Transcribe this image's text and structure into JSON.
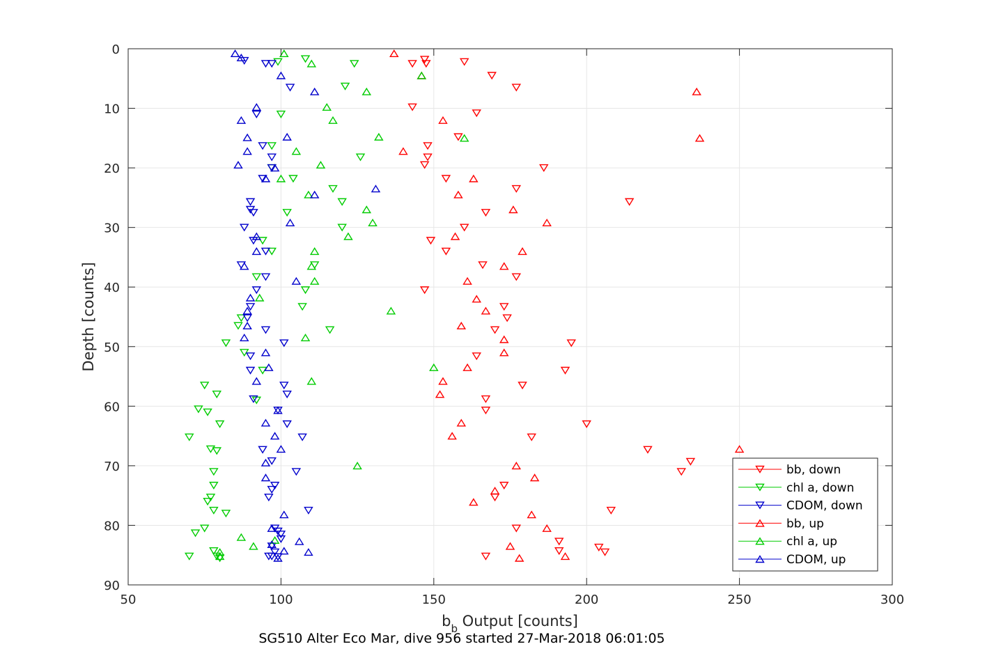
{
  "chart_data": {
    "type": "scatter",
    "xlabel_main": "b",
    "xlabel_sub": "b",
    "xlabel_rest": " Output [counts]",
    "ylabel": "Depth [counts]",
    "caption": "SG510 Alter Eco Mar, dive 956 started 27-Mar-2018 06:01:05",
    "xlim": [
      50,
      300
    ],
    "ylim": [
      0,
      90
    ],
    "y_reversed": true,
    "grid": true,
    "legend_position": "bottom-right",
    "x_ticks": [
      50,
      100,
      150,
      200,
      250,
      300
    ],
    "y_ticks": [
      0,
      10,
      20,
      30,
      40,
      50,
      60,
      70,
      80,
      90
    ],
    "series": [
      {
        "name": "bb, down",
        "color": "#ff0000",
        "marker": "triangle-down",
        "points": [
          [
            147,
            1.8
          ],
          [
            143,
            2.5
          ],
          [
            147.5,
            2.5
          ],
          [
            160,
            2.2
          ],
          [
            169,
            4.5
          ],
          [
            177,
            6.5
          ],
          [
            143,
            9.8
          ],
          [
            164,
            10.8
          ],
          [
            158,
            14.8
          ],
          [
            148,
            16.3
          ],
          [
            148,
            18.2
          ],
          [
            147,
            19.5
          ],
          [
            186,
            20
          ],
          [
            154,
            21.8
          ],
          [
            177,
            23.5
          ],
          [
            214,
            25.7
          ],
          [
            167,
            27.5
          ],
          [
            160,
            30
          ],
          [
            149,
            32.2
          ],
          [
            154,
            34
          ],
          [
            166,
            36.3
          ],
          [
            177,
            38.3
          ],
          [
            147,
            40.5
          ],
          [
            173,
            43.3
          ],
          [
            174,
            45.2
          ],
          [
            170,
            47.2
          ],
          [
            195,
            49.4
          ],
          [
            164,
            51.6
          ],
          [
            193,
            54
          ],
          [
            179,
            56.5
          ],
          [
            167,
            58.8
          ],
          [
            167,
            60.7
          ],
          [
            200,
            63
          ],
          [
            182,
            65.2
          ],
          [
            220,
            67.3
          ],
          [
            234,
            69.3
          ],
          [
            231,
            71
          ],
          [
            170,
            75.3
          ],
          [
            173,
            73.3
          ],
          [
            208,
            77.5
          ],
          [
            177,
            80.5
          ],
          [
            191,
            82.7
          ],
          [
            191,
            84.3
          ],
          [
            204,
            83.7
          ],
          [
            206,
            84.5
          ],
          [
            167,
            85.2
          ]
        ]
      },
      {
        "name": "chl a, down",
        "color": "#00cc00",
        "marker": "triangle-down",
        "points": [
          [
            108,
            1.7
          ],
          [
            99,
            2.2
          ],
          [
            124,
            2.5
          ],
          [
            121,
            6.3
          ],
          [
            100,
            11
          ],
          [
            97,
            16.3
          ],
          [
            126,
            18.2
          ],
          [
            97,
            20
          ],
          [
            104,
            21.8
          ],
          [
            117,
            23.5
          ],
          [
            120,
            25.7
          ],
          [
            102,
            27.5
          ],
          [
            120,
            30
          ],
          [
            94,
            32.2
          ],
          [
            97,
            34
          ],
          [
            111,
            36.3
          ],
          [
            92,
            38.3
          ],
          [
            108,
            40.5
          ],
          [
            107,
            43.3
          ],
          [
            87,
            45.2
          ],
          [
            86,
            46.5
          ],
          [
            116,
            47.2
          ],
          [
            82,
            49.4
          ],
          [
            88,
            51
          ],
          [
            94,
            54
          ],
          [
            75,
            56.5
          ],
          [
            79,
            58
          ],
          [
            92,
            59
          ],
          [
            73,
            60.5
          ],
          [
            76,
            61
          ],
          [
            80,
            63
          ],
          [
            70,
            65.2
          ],
          [
            77,
            67.2
          ],
          [
            79,
            67.5
          ],
          [
            78,
            71
          ],
          [
            78,
            73.3
          ],
          [
            77,
            75.3
          ],
          [
            76,
            76
          ],
          [
            78,
            77.5
          ],
          [
            82,
            78
          ],
          [
            75,
            80.5
          ],
          [
            72,
            81.3
          ],
          [
            78,
            84.3
          ],
          [
            79,
            85.2
          ],
          [
            80,
            85.5
          ],
          [
            70,
            85.2
          ]
        ]
      },
      {
        "name": "CDOM, down",
        "color": "#0000cc",
        "marker": "triangle-down",
        "points": [
          [
            88,
            2
          ],
          [
            95,
            2.5
          ],
          [
            97,
            2.5
          ],
          [
            103,
            6.5
          ],
          [
            92,
            11
          ],
          [
            94,
            16.3
          ],
          [
            97,
            18.2
          ],
          [
            97,
            20
          ],
          [
            94,
            21.8
          ],
          [
            90,
            25.7
          ],
          [
            90,
            27
          ],
          [
            91,
            27.5
          ],
          [
            88,
            30
          ],
          [
            91,
            32.2
          ],
          [
            95,
            34
          ],
          [
            87,
            36.3
          ],
          [
            95,
            38.3
          ],
          [
            92,
            40.5
          ],
          [
            90,
            43.3
          ],
          [
            89,
            45.2
          ],
          [
            95,
            47.2
          ],
          [
            101,
            49.4
          ],
          [
            90,
            51.6
          ],
          [
            90,
            54
          ],
          [
            101,
            56.5
          ],
          [
            102,
            58
          ],
          [
            91,
            58.8
          ],
          [
            99,
            60.7
          ],
          [
            102,
            63
          ],
          [
            107,
            65.2
          ],
          [
            94,
            67.3
          ],
          [
            97,
            69.2
          ],
          [
            105,
            71
          ],
          [
            98,
            73.3
          ],
          [
            97,
            74
          ],
          [
            96,
            75.3
          ],
          [
            109,
            77.5
          ],
          [
            98,
            80.5
          ],
          [
            99,
            81
          ],
          [
            100,
            81.5
          ],
          [
            100,
            82.3
          ],
          [
            97,
            83.5
          ],
          [
            98,
            84.5
          ],
          [
            96,
            85.2
          ],
          [
            97,
            85.2
          ],
          [
            99,
            85.3
          ]
        ]
      },
      {
        "name": "bb, up",
        "color": "#ff0000",
        "marker": "triangle-up",
        "points": [
          [
            137,
            0.8
          ],
          [
            146,
            4.5
          ],
          [
            236,
            7.2
          ],
          [
            153,
            12
          ],
          [
            237,
            15
          ],
          [
            140,
            17.2
          ],
          [
            163,
            21.8
          ],
          [
            158,
            24.5
          ],
          [
            176,
            27
          ],
          [
            187,
            29.2
          ],
          [
            157,
            31.5
          ],
          [
            179,
            34
          ],
          [
            173,
            36.5
          ],
          [
            161,
            39
          ],
          [
            164,
            42
          ],
          [
            167,
            44
          ],
          [
            159,
            46.5
          ],
          [
            173,
            48.8
          ],
          [
            173,
            51
          ],
          [
            161,
            53.5
          ],
          [
            153,
            55.8
          ],
          [
            152,
            58
          ],
          [
            159,
            62.8
          ],
          [
            156,
            65
          ],
          [
            250,
            67.2
          ],
          [
            177,
            70
          ],
          [
            183,
            72
          ],
          [
            170,
            74.2
          ],
          [
            163,
            76.1
          ],
          [
            182,
            78.2
          ],
          [
            187,
            80.5
          ],
          [
            175,
            83.5
          ],
          [
            178,
            85.5
          ],
          [
            193,
            85.2
          ]
        ]
      },
      {
        "name": "chl a, up",
        "color": "#00cc00",
        "marker": "triangle-up",
        "points": [
          [
            101,
            0.8
          ],
          [
            110,
            2.5
          ],
          [
            146,
            4.5
          ],
          [
            128,
            7.2
          ],
          [
            115,
            9.8
          ],
          [
            117,
            12
          ],
          [
            132,
            14.8
          ],
          [
            160,
            15
          ],
          [
            105,
            17.2
          ],
          [
            113,
            19.5
          ],
          [
            100,
            21.8
          ],
          [
            109,
            24.5
          ],
          [
            128,
            27
          ],
          [
            130,
            29.2
          ],
          [
            122,
            31.5
          ],
          [
            111,
            34
          ],
          [
            110,
            36.5
          ],
          [
            111,
            39
          ],
          [
            93,
            41.8
          ],
          [
            136,
            44
          ],
          [
            108,
            48.5
          ],
          [
            150,
            53.5
          ],
          [
            110,
            55.8
          ],
          [
            125,
            70
          ],
          [
            87,
            82
          ],
          [
            91,
            83.5
          ],
          [
            98,
            82.5
          ],
          [
            80,
            84.5
          ],
          [
            80,
            85.2
          ]
        ]
      },
      {
        "name": "CDOM, up",
        "color": "#0000cc",
        "marker": "triangle-up",
        "points": [
          [
            85,
            0.8
          ],
          [
            87,
            1.5
          ],
          [
            100,
            4.5
          ],
          [
            111,
            7.2
          ],
          [
            92,
            9.8
          ],
          [
            87,
            12
          ],
          [
            102,
            14.8
          ],
          [
            89,
            14.9
          ],
          [
            89,
            17.2
          ],
          [
            86,
            19.5
          ],
          [
            98,
            20
          ],
          [
            95,
            21.8
          ],
          [
            131,
            23.5
          ],
          [
            111,
            24.5
          ],
          [
            103,
            29.2
          ],
          [
            92,
            31.5
          ],
          [
            92,
            34
          ],
          [
            88,
            36.5
          ],
          [
            105,
            39
          ],
          [
            90,
            41.8
          ],
          [
            89,
            44
          ],
          [
            89,
            46.5
          ],
          [
            88,
            48.5
          ],
          [
            95,
            51
          ],
          [
            96,
            53.5
          ],
          [
            92,
            55.8
          ],
          [
            99,
            60.7
          ],
          [
            95,
            62.8
          ],
          [
            98,
            65
          ],
          [
            100,
            67.2
          ],
          [
            95,
            69.5
          ],
          [
            95,
            72
          ],
          [
            101,
            78.2
          ],
          [
            97,
            80.5
          ],
          [
            106,
            82.7
          ],
          [
            97,
            83.2
          ],
          [
            101,
            84.3
          ],
          [
            109,
            84.5
          ],
          [
            99,
            85.5
          ]
        ]
      }
    ]
  }
}
